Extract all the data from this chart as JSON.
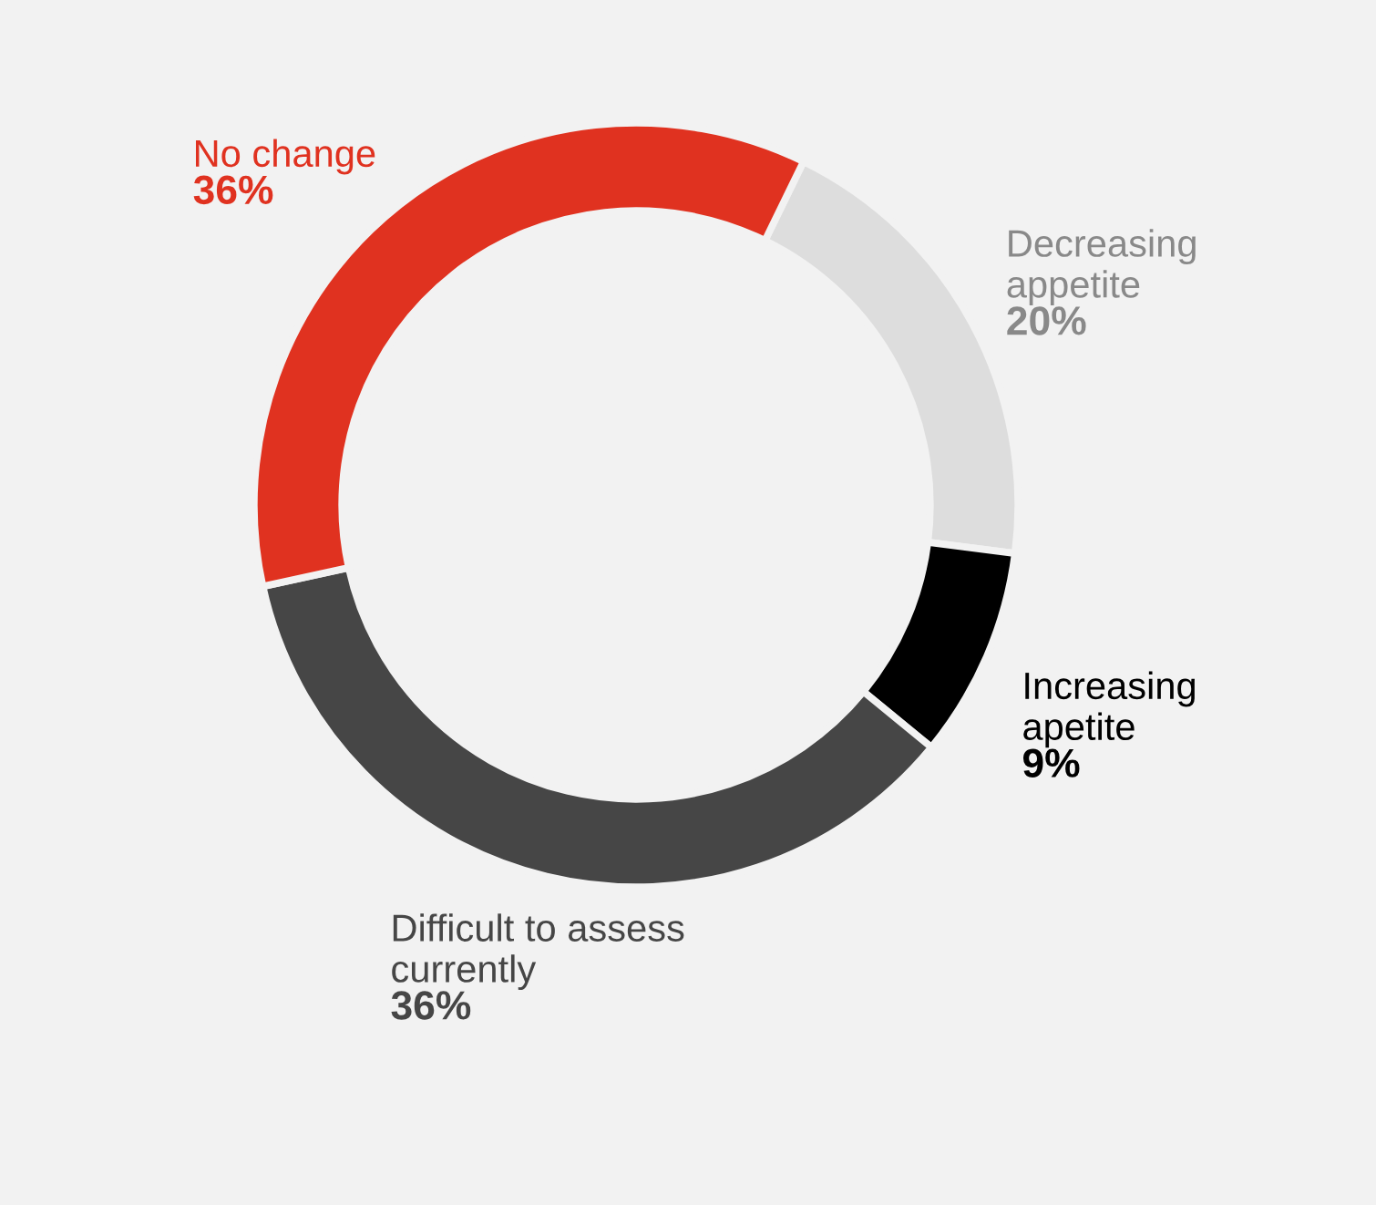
{
  "chart_data": {
    "type": "donut",
    "categories": [
      "Decreasing\nappetite",
      "Increasing\napetite",
      "Difficult to assess\ncurrently",
      "No change"
    ],
    "values": [
      20,
      9,
      36,
      36
    ],
    "value_labels": [
      "20%",
      "9%",
      "36%",
      "36%"
    ],
    "colors": [
      "#dddddd",
      "#000000",
      "#464646",
      "#e03220"
    ],
    "legend": false
  }
}
